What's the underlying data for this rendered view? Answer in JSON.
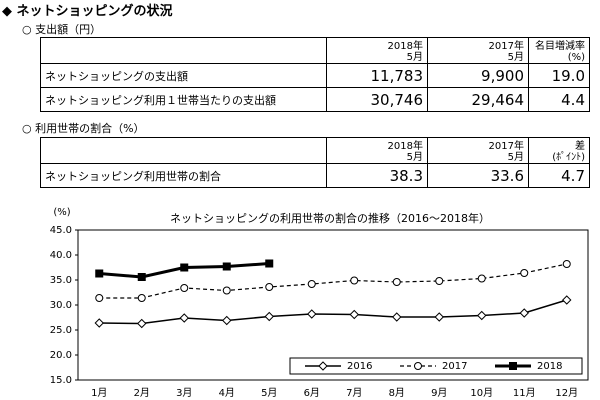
{
  "header": {
    "title": "◆ ネットショッピングの状況"
  },
  "table1": {
    "caption": "○  支出額（円）",
    "columns": [
      "2018年\n5月",
      "2017年\n5月",
      "名目増減率\n(%)"
    ],
    "rows": [
      [
        "ネットショッピングの支出額",
        "11,783",
        "9,900",
        "19.0"
      ],
      [
        "ネットショッピング利用１世帯当たりの支出額",
        "30,746",
        "29,464",
        "4.4"
      ]
    ]
  },
  "table2": {
    "caption": "○  利用世帯の割合（%）",
    "columns": [
      "2018年\n5月",
      "2017年\n5月",
      "差\n(ﾎﾟｲﾝﾄ)"
    ],
    "rows": [
      [
        "ネットショッピング利用世帯の割合",
        "38.3",
        "33.6",
        "4.7"
      ]
    ]
  },
  "chart_data": {
    "type": "line",
    "title": "ネットショッピングの利用世帯の割合の推移（2016～2018年）",
    "y_label": "(%)",
    "categories": [
      "1月",
      "2月",
      "3月",
      "4月",
      "5月",
      "6月",
      "7月",
      "8月",
      "9月",
      "10月",
      "11月",
      "12月"
    ],
    "ylim": [
      15,
      45
    ],
    "yticks": [
      {
        "value": 15,
        "label": "15.0"
      },
      {
        "value": 20,
        "label": "20.0"
      },
      {
        "value": 25,
        "label": "25.0"
      },
      {
        "value": 30,
        "label": "30.0"
      },
      {
        "value": 35,
        "label": "35.0"
      },
      {
        "value": 40,
        "label": "40.0"
      },
      {
        "value": 45,
        "label": "45.0"
      }
    ],
    "grid": false,
    "legend": "lower right",
    "series": [
      {
        "name": "2016",
        "color": "#000000",
        "marker": "diamond",
        "line_style": "solid",
        "values": [
          26.4,
          26.3,
          27.4,
          26.9,
          27.7,
          28.2,
          28.1,
          27.6,
          27.6,
          27.9,
          28.4,
          31.0
        ]
      },
      {
        "name": "2017",
        "color": "#000000",
        "marker": "circle",
        "line_style": "dashed",
        "values": [
          31.4,
          31.4,
          33.4,
          32.9,
          33.6,
          34.2,
          34.9,
          34.6,
          34.8,
          35.3,
          36.4,
          38.2
        ]
      },
      {
        "name": "2018",
        "color": "#000000",
        "marker": "square",
        "line_style": "bold",
        "values": [
          36.3,
          35.6,
          37.5,
          37.7,
          38.3,
          null,
          null,
          null,
          null,
          null,
          null,
          null
        ]
      }
    ]
  }
}
